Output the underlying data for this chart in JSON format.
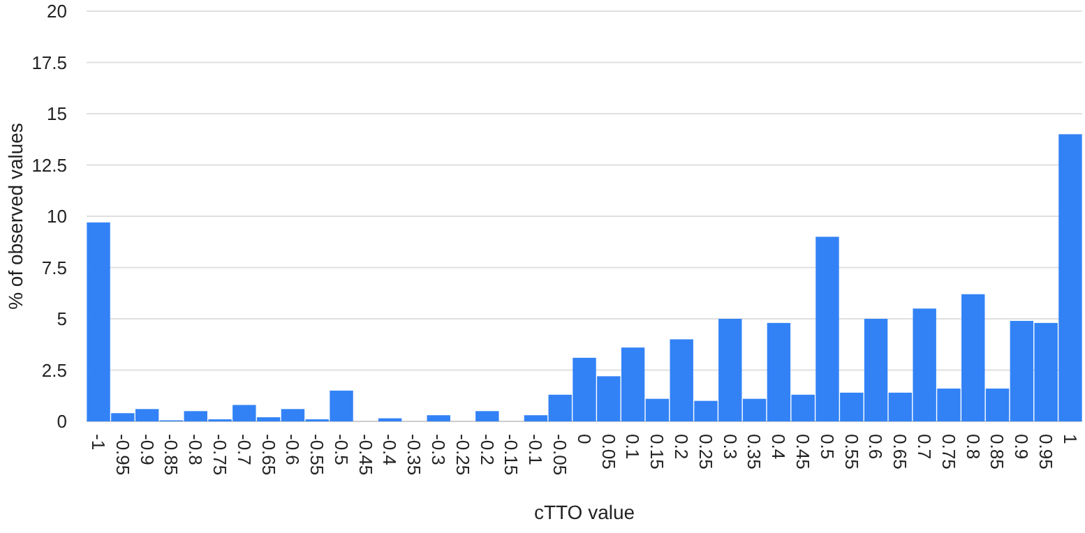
{
  "chart_data": {
    "type": "bar",
    "xlabel": "cTTO value",
    "ylabel": "% of observed values",
    "categories": [
      "-1",
      "-0.95",
      "-0.9",
      "-0.85",
      "-0.8",
      "-0.75",
      "-0.7",
      "-0.65",
      "-0.6",
      "-0.55",
      "-0.5",
      "-0.45",
      "-0.4",
      "-0.35",
      "-0.3",
      "-0.25",
      "-0.2",
      "-0.15",
      "-0.1",
      "-0.05",
      "0",
      "0.05",
      "0.1",
      "0.15",
      "0.2",
      "0.25",
      "0.3",
      "0.35",
      "0.4",
      "0.45",
      "0.5",
      "0.55",
      "0.6",
      "0.65",
      "0.7",
      "0.75",
      "0.8",
      "0.85",
      "0.9",
      "0.95",
      "1"
    ],
    "values": [
      9.7,
      0.4,
      0.6,
      0.05,
      0.5,
      0.1,
      0.8,
      0.2,
      0.6,
      0.1,
      1.5,
      0,
      0.15,
      0,
      0.3,
      0,
      0.5,
      0,
      0.3,
      1.3,
      3.1,
      2.2,
      3.6,
      1.1,
      4.0,
      1.0,
      5.0,
      1.1,
      4.8,
      1.3,
      9.0,
      1.4,
      5.0,
      1.4,
      5.5,
      1.6,
      6.2,
      1.6,
      4.9,
      4.8,
      14.0
    ],
    "color": "#3282f6",
    "ylim": [
      0,
      20
    ],
    "yticks": [
      0,
      2.5,
      5,
      7.5,
      10,
      12.5,
      15,
      17.5,
      20
    ],
    "grid": true
  }
}
